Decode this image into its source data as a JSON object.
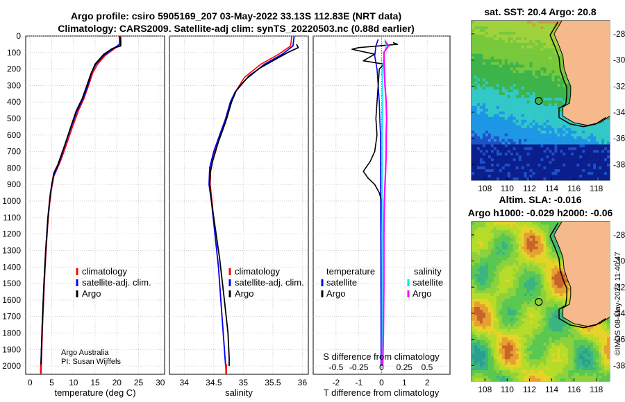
{
  "titles": {
    "line1": "Argo profile: csiro 5905169_207 03-May-2022 33.13S 112.83E (NRT data)",
    "line2": "Climatology: CARS2009. Satellite-adj clim: synTS_20220503.nc (0.88d earlier)"
  },
  "colors": {
    "climatology": "#ff0000",
    "satellite_adj": "#0000ff",
    "argo": "#000000",
    "sat_salinity": "#00e5ee",
    "argo_salinity": "#ff00ff"
  },
  "depth_ticks": [
    "0",
    "100",
    "200",
    "300",
    "400",
    "500",
    "600",
    "700",
    "800",
    "900",
    "1000",
    "1100",
    "1200",
    "1300",
    "1400",
    "1500",
    "1600",
    "1700",
    "1800",
    "1900",
    "2000"
  ],
  "legend_ts": [
    {
      "label": "climatology",
      "color_key": "climatology"
    },
    {
      "label": "satellite-adj. clim.",
      "color_key": "satellite_adj"
    },
    {
      "label": "Argo",
      "color_key": "argo"
    }
  ],
  "credits": {
    "line1": "Argo Australia",
    "line2": "PI: Susan Wijffels"
  },
  "diff_panel": {
    "legend_temp_title": "temperature",
    "legend_sal_title": "salinity",
    "temp_items": [
      {
        "label": "satellite",
        "color_key": "satellite_adj"
      },
      {
        "label": "Argo",
        "color_key": "argo"
      }
    ],
    "sal_items": [
      {
        "label": "satellite",
        "color_key": "sat_salinity"
      },
      {
        "label": "Argo",
        "color_key": "argo_salinity"
      }
    ],
    "s_axis_label": "S difference from climatology",
    "s_ticks": [
      "-0.5",
      "-0.25",
      "0",
      "0.25",
      "0.5"
    ],
    "t_ticks": [
      "-2",
      "-1",
      "0",
      "1",
      "2"
    ],
    "xlabel": "T difference from climatology"
  },
  "maps": {
    "sst_title": "sat. SST: 20.4 Argo: 20.8",
    "sla_title1": "Altim. SLA: -0.016",
    "sla_title2": "Argo h1000: -0.029 h2000: -0.06",
    "lat_ticks": [
      "-28",
      "-30",
      "-32",
      "-34",
      "-36",
      "-38"
    ],
    "lon_ticks": [
      "108",
      "110",
      "112",
      "114",
      "116",
      "118"
    ],
    "stamp": "©IMOS 08-May-2022 11:40:47",
    "float_lon": 112.83,
    "float_lat": -33.13
  },
  "chart_data": [
    {
      "type": "line",
      "title": "",
      "xlabel": "temperature (deg C)",
      "ylabel": "",
      "xlim": [
        -1,
        31
      ],
      "ylim": [
        2050,
        0
      ],
      "x_ticks": [
        "0",
        "5",
        "10",
        "15",
        "20",
        "25",
        "30"
      ],
      "series": [
        {
          "name": "climatology",
          "color_key": "climatology",
          "width": 1.6,
          "points": [
            [
              20.9,
              0
            ],
            [
              20.9,
              50
            ],
            [
              19.3,
              80
            ],
            [
              17.2,
              120
            ],
            [
              15.6,
              170
            ],
            [
              14.5,
              220
            ],
            [
              13.5,
              300
            ],
            [
              12.4,
              380
            ],
            [
              11.2,
              450
            ],
            [
              9.8,
              550
            ],
            [
              8.5,
              650
            ],
            [
              7.0,
              760
            ],
            [
              5.5,
              850
            ],
            [
              4.8,
              950
            ],
            [
              4.2,
              1100
            ],
            [
              3.7,
              1300
            ],
            [
              3.3,
              1500
            ],
            [
              2.9,
              1750
            ],
            [
              2.6,
              2000
            ],
            [
              2.5,
              2050
            ]
          ]
        },
        {
          "name": "satellite-adj. clim.",
          "color_key": "satellite_adj",
          "width": 1.8,
          "points": [
            [
              20.6,
              0
            ],
            [
              20.6,
              50
            ],
            [
              19.0,
              80
            ],
            [
              16.9,
              120
            ],
            [
              15.2,
              170
            ],
            [
              14.2,
              220
            ],
            [
              13.3,
              300
            ],
            [
              12.2,
              380
            ],
            [
              10.9,
              450
            ],
            [
              9.5,
              550
            ],
            [
              8.2,
              650
            ],
            [
              6.8,
              760
            ],
            [
              5.4,
              850
            ],
            [
              4.7,
              950
            ],
            [
              4.1,
              1100
            ],
            [
              3.6,
              1300
            ],
            [
              3.2,
              1500
            ],
            [
              2.8,
              1750
            ],
            [
              2.5,
              2000
            ]
          ]
        },
        {
          "name": "Argo",
          "color_key": "argo",
          "width": 1.8,
          "points": [
            [
              20.8,
              5
            ],
            [
              20.9,
              30
            ],
            [
              20.9,
              60
            ],
            [
              19.0,
              75
            ],
            [
              17.0,
              110
            ],
            [
              15.0,
              170
            ],
            [
              14.0,
              230
            ],
            [
              13.1,
              300
            ],
            [
              12.0,
              380
            ],
            [
              10.7,
              450
            ],
            [
              9.4,
              550
            ],
            [
              8.0,
              660
            ],
            [
              6.4,
              780
            ],
            [
              5.5,
              830
            ],
            [
              5.0,
              900
            ],
            [
              4.5,
              1000
            ],
            [
              4.0,
              1150
            ],
            [
              3.6,
              1300
            ],
            [
              3.2,
              1500
            ],
            [
              2.8,
              1750
            ],
            [
              2.5,
              2000
            ]
          ]
        }
      ]
    },
    {
      "type": "line",
      "title": "",
      "xlabel": "salinity",
      "ylabel": "",
      "xlim": [
        33.75,
        36.1
      ],
      "ylim": [
        2050,
        0
      ],
      "x_ticks": [
        "34",
        "34.5",
        "35",
        "35.5",
        "36"
      ],
      "series": [
        {
          "name": "climatology",
          "color_key": "climatology",
          "width": 1.6,
          "points": [
            [
              35.82,
              0
            ],
            [
              35.8,
              60
            ],
            [
              35.6,
              110
            ],
            [
              35.3,
              170
            ],
            [
              35.02,
              250
            ],
            [
              34.88,
              330
            ],
            [
              34.8,
              400
            ],
            [
              34.72,
              500
            ],
            [
              34.62,
              600
            ],
            [
              34.52,
              700
            ],
            [
              34.45,
              800
            ],
            [
              34.44,
              900
            ],
            [
              34.47,
              1000
            ],
            [
              34.52,
              1200
            ],
            [
              34.58,
              1400
            ],
            [
              34.64,
              1700
            ],
            [
              34.7,
              2000
            ],
            [
              34.71,
              2050
            ]
          ]
        },
        {
          "name": "satellite-adj. clim.",
          "color_key": "satellite_adj",
          "width": 1.8,
          "points": [
            [
              35.86,
              0
            ],
            [
              35.84,
              60
            ],
            [
              35.66,
              110
            ],
            [
              35.36,
              170
            ],
            [
              35.05,
              260
            ],
            [
              34.86,
              340
            ],
            [
              34.78,
              400
            ],
            [
              34.7,
              500
            ],
            [
              34.6,
              600
            ],
            [
              34.5,
              700
            ],
            [
              34.43,
              800
            ],
            [
              34.42,
              900
            ],
            [
              34.46,
              1000
            ],
            [
              34.52,
              1200
            ],
            [
              34.58,
              1400
            ],
            [
              34.64,
              1700
            ],
            [
              34.7,
              2000
            ]
          ]
        },
        {
          "name": "Argo",
          "color_key": "argo",
          "width": 1.8,
          "points": [
            [
              35.9,
              50
            ],
            [
              35.93,
              70
            ],
            [
              35.75,
              100
            ],
            [
              35.55,
              140
            ],
            [
              35.3,
              190
            ],
            [
              35.1,
              240
            ],
            [
              34.95,
              300
            ],
            [
              34.88,
              330
            ],
            [
              34.8,
              400
            ],
            [
              34.7,
              520
            ],
            [
              34.58,
              640
            ],
            [
              34.48,
              760
            ],
            [
              34.44,
              830
            ],
            [
              34.43,
              900
            ],
            [
              34.46,
              1000
            ],
            [
              34.52,
              1150
            ],
            [
              34.6,
              1350
            ],
            [
              34.68,
              1600
            ],
            [
              34.74,
              1800
            ],
            [
              34.76,
              1950
            ],
            [
              34.76,
              2000
            ]
          ]
        }
      ]
    },
    {
      "type": "line",
      "title": "",
      "xlabel": "T difference from climatology",
      "ylabel": "",
      "xlim": [
        -3,
        3
      ],
      "ylim": [
        2050,
        0
      ],
      "series": [
        {
          "name": "temperature satellite",
          "color_key": "satellite_adj",
          "width": 1.6,
          "points": [
            [
              -0.15,
              20
            ],
            [
              -0.25,
              60
            ],
            [
              -0.3,
              120
            ],
            [
              -0.2,
              200
            ],
            [
              -0.15,
              300
            ],
            [
              -0.1,
              400
            ],
            [
              -0.08,
              500
            ],
            [
              -0.05,
              600
            ],
            [
              -0.05,
              800
            ],
            [
              -0.04,
              1000
            ],
            [
              -0.03,
              1500
            ],
            [
              -0.02,
              2000
            ]
          ]
        },
        {
          "name": "temperature Argo",
          "color_key": "argo",
          "width": 1.6,
          "points": [
            [
              0.5,
              40
            ],
            [
              0.7,
              50
            ],
            [
              -1.0,
              70
            ],
            [
              -1.3,
              80
            ],
            [
              -0.3,
              110
            ],
            [
              -0.8,
              150
            ],
            [
              0.1,
              170
            ],
            [
              -0.1,
              200
            ],
            [
              -0.15,
              300
            ],
            [
              -0.2,
              400
            ],
            [
              -0.25,
              500
            ],
            [
              -0.2,
              600
            ],
            [
              -0.3,
              700
            ],
            [
              -0.5,
              760
            ],
            [
              -0.8,
              820
            ],
            [
              -0.6,
              860
            ],
            [
              -0.3,
              900
            ],
            [
              -0.1,
              950
            ],
            [
              0.0,
              1000
            ],
            [
              0.02,
              1200
            ],
            [
              0.01,
              1500
            ],
            [
              0.02,
              2000
            ]
          ]
        },
        {
          "name": "salinity satellite",
          "color_key": "sat_salinity",
          "width": 1.6,
          "points": [
            [
              0.15,
              20
            ],
            [
              0.2,
              60
            ],
            [
              0.1,
              120
            ],
            [
              0.05,
              200
            ],
            [
              0.05,
              300
            ],
            [
              0.05,
              400
            ],
            [
              0.02,
              600
            ],
            [
              0.02,
              1000
            ],
            [
              0.02,
              1500
            ],
            [
              0.02,
              2000
            ]
          ]
        },
        {
          "name": "salinity Argo",
          "color_key": "argo_salinity",
          "width": 2.2,
          "points": [
            [
              0.15,
              30
            ],
            [
              0.3,
              60
            ],
            [
              0.1,
              100
            ],
            [
              0.12,
              200
            ],
            [
              0.15,
              300
            ],
            [
              0.2,
              400
            ],
            [
              0.22,
              500
            ],
            [
              0.2,
              600
            ],
            [
              0.2,
              700
            ],
            [
              0.18,
              800
            ],
            [
              0.15,
              900
            ],
            [
              0.12,
              1000
            ],
            [
              0.1,
              1200
            ],
            [
              0.1,
              1500
            ],
            [
              0.08,
              1800
            ],
            [
              0.05,
              2000
            ]
          ]
        }
      ]
    }
  ]
}
